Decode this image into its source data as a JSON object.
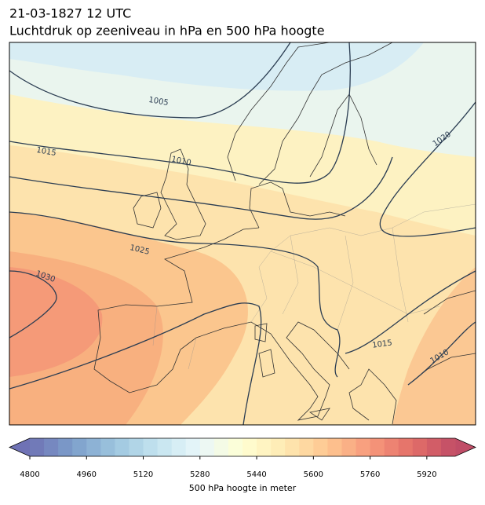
{
  "header": {
    "title": "21-03-1827 12 UTC",
    "subtitle": "Luchtdruk op zeeniveau in hPa en 500 hPa hoogte"
  },
  "isobars": [
    1005,
    1010,
    1015,
    1020,
    1025,
    1030,
    1015,
    1010
  ],
  "colorbar": {
    "lim": [
      4800,
      6000
    ],
    "step": 40,
    "ticks": [
      4800,
      4960,
      5120,
      5280,
      5440,
      5600,
      5760,
      5920
    ],
    "label": "500 hPa hoogte in meter"
  }
}
